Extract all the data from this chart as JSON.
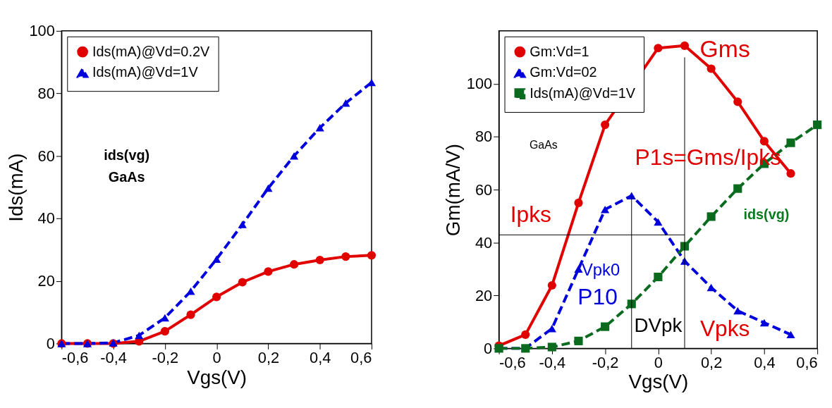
{
  "chart_data": [
    {
      "type": "line",
      "xlabel": "Vgs(V)",
      "ylabel": "Ids(mA)",
      "x": [
        -0.6,
        -0.5,
        -0.4,
        -0.3,
        -0.2,
        -0.1,
        0,
        0.1,
        0.2,
        0.3,
        0.4,
        0.5,
        0.6
      ],
      "xlim": [
        -0.6,
        0.6
      ],
      "xticks": [
        {
          "value": -0.6,
          "label": "-0,6"
        },
        {
          "value": -0.4,
          "label": "-0,4"
        },
        {
          "value": -0.2,
          "label": "-0,2"
        },
        {
          "value": 0,
          "label": "0"
        },
        {
          "value": 0.2,
          "label": "0,2"
        },
        {
          "value": 0.4,
          "label": "0,4"
        },
        {
          "value": 0.6,
          "label": "0,6"
        }
      ],
      "ylim": [
        0,
        100
      ],
      "yticks": [
        0,
        20,
        40,
        60,
        80,
        100
      ],
      "grid": false,
      "legend": "top left",
      "series": [
        {
          "name": "Ids(mA)@Vd=0.2V",
          "color": "#e00000",
          "marker": "circle",
          "line_style": "solid",
          "values": [
            0,
            0,
            0,
            0.7,
            3.9,
            9.2,
            14.9,
            19.6,
            23,
            25.3,
            26.7,
            27.8,
            28.2
          ]
        },
        {
          "name": "Ids(mA)@Vd=1V",
          "color": "#0000dd",
          "marker": "triangle",
          "line_style": "dashed",
          "values": [
            0,
            0,
            0.2,
            2.6,
            8.2,
            16.7,
            27,
            38.1,
            49.7,
            60,
            69,
            76.9,
            83.5
          ]
        }
      ],
      "annotations": [
        "ids(vg)",
        "GaAs"
      ]
    },
    {
      "type": "line",
      "xlabel": "Vgs(V)",
      "ylabel": "Gm(mA/V)",
      "x": [
        -0.6,
        -0.5,
        -0.4,
        -0.3,
        -0.2,
        -0.1,
        0,
        0.1,
        0.2,
        0.3,
        0.4,
        0.5,
        0.6
      ],
      "xlim": [
        -0.6,
        0.6
      ],
      "xticks": [
        {
          "value": -0.6,
          "label": "-0,6"
        },
        {
          "value": -0.4,
          "label": "-0,4"
        },
        {
          "value": -0.2,
          "label": "-0,2"
        },
        {
          "value": 0,
          "label": "0"
        },
        {
          "value": 0.2,
          "label": "0,2"
        },
        {
          "value": 0.4,
          "label": "0,4"
        },
        {
          "value": 0.6,
          "label": "0,6"
        }
      ],
      "ylim": [
        0,
        120
      ],
      "yticks": [
        0,
        20,
        40,
        60,
        80,
        100
      ],
      "grid": false,
      "legend": "top left",
      "series": [
        {
          "name": "Gm:Vd=1",
          "color": "#e00000",
          "marker": "circle",
          "line_style": "solid",
          "values": [
            1,
            5.2,
            23.8,
            55,
            84.5,
            null,
            113.5,
            114.4,
            105.7,
            93.2,
            78.3,
            66.1,
            null
          ]
        },
        {
          "name": "Gm:Vd=02",
          "color": "#0000dd",
          "marker": "triangle",
          "line_style": "dashed",
          "values": [
            0,
            0,
            7.5,
            30,
            52.5,
            57.7,
            47.8,
            33,
            23,
            14.2,
            9.7,
            5.2,
            null
          ]
        },
        {
          "name": "Ids(mA)@Vd=1V",
          "color": "#0a6b1f",
          "marker": "square",
          "line_style": "dashed",
          "values": [
            0,
            0,
            0.5,
            2.8,
            8.2,
            16.8,
            27,
            38.6,
            49.8,
            60.4,
            69.8,
            77.7,
            84.5
          ]
        },
        {
          "type": "line",
          "color": "#000000",
          "marker": "none",
          "line_style": "solid",
          "x": [
            0.1,
            0.1
          ],
          "values": [
            0,
            110
          ]
        },
        {
          "type": "line",
          "color": "#000000",
          "marker": "none",
          "line_style": "solid",
          "x": [
            -0.6,
            0.1
          ],
          "values": [
            42.9,
            42.9
          ]
        },
        {
          "type": "line",
          "color": "#000000",
          "marker": "none",
          "line_style": "solid",
          "x": [
            -0.1,
            -0.1
          ],
          "values": [
            0,
            57.7
          ]
        }
      ],
      "annotations": [
        "GaAs",
        "Gms",
        "P1s=Gms/Ipks",
        "Ipks",
        "ids(vg)",
        "Vpk0",
        "P10",
        "DVpk",
        "Vpks"
      ]
    }
  ]
}
